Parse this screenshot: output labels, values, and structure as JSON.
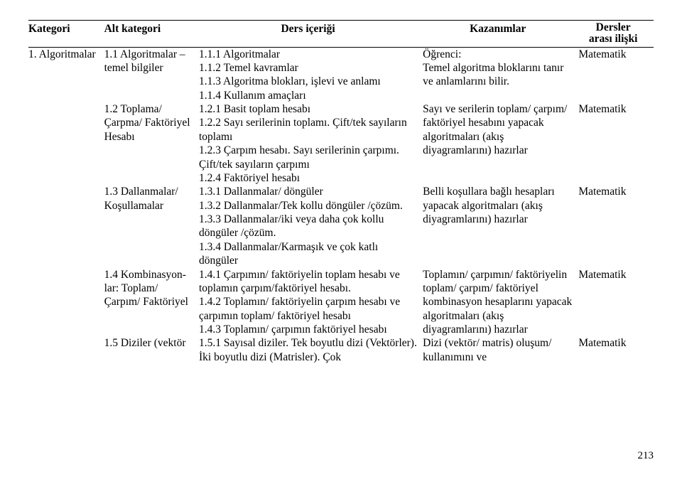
{
  "headers": {
    "kategori": "Kategori",
    "alt": "Alt kategori",
    "ders": "Ders içeriği",
    "kazanim": "Kazanımlar",
    "dersler_line1": "Dersler",
    "dersler_line2": "arası ilişki"
  },
  "rows": [
    {
      "kategori": "1. Algoritmalar",
      "alt": "1.1 Algoritmalar – temel bilgiler",
      "ders": "1.1.1 Algoritmalar\n1.1.2 Temel kavramlar\n1.1.3 Algoritma blokları, işlevi ve anlamı\n1.1.4 Kullanım amaçları",
      "kazanim": "Öğrenci:\nTemel algoritma bloklarını tanır ve anlamlarını bilir.",
      "dersler": "Matematik"
    },
    {
      "kategori": "",
      "alt": "1.2 Toplama/ Çarpma/ Faktöriyel Hesabı",
      "ders": "1.2.1 Basit toplam hesabı\n1.2.2 Sayı serilerinin toplamı. Çift/tek sayıların toplamı\n1.2.3 Çarpım hesabı. Sayı serilerinin çarpımı. Çift/tek sayıların çarpımı\n1.2.4 Faktöriyel hesabı",
      "kazanim": "Sayı ve serilerin toplam/ çarpım/ faktöriyel hesabını yapacak algoritmaları (akış diyagramlarını) hazırlar",
      "dersler": "Matematik"
    },
    {
      "kategori": "",
      "alt": "1.3 Dallanmalar/ Koşullamalar",
      "ders": "1.3.1 Dallanmalar/ döngüler\n1.3.2 Dallanmalar/Tek kollu döngüler /çözüm.\n1.3.3 Dallanmalar/iki veya daha çok kollu döngüler /çözüm.\n1.3.4 Dallanmalar/Karmaşık ve çok katlı döngüler",
      "kazanim": "Belli koşullara bağlı hesapları yapacak algoritmaları (akış diyagramlarını) hazırlar",
      "dersler": "Matematik"
    },
    {
      "kategori": "",
      "alt": "1.4 Kombinasyon-lar: Toplam/ Çarpım/ Faktöriyel",
      "ders": "1.4.1 Çarpımın/ faktöriyelin toplam hesabı ve toplamın çarpım/faktöriyel hesabı.\n1.4.2 Toplamın/ faktöriyelin çarpım hesabı ve çarpımın toplam/ faktöriyel hesabı\n1.4.3 Toplamın/ çarpımın faktöriyel hesabı",
      "kazanim": "Toplamın/ çarpımın/ faktöriyelin toplam/ çarpım/ faktöriyel kombinasyon hesaplarını yapacak algoritmaları (akış diyagramlarını) hazırlar",
      "dersler": "Matematik"
    },
    {
      "kategori": "",
      "alt": "1.5 Diziler (vektör",
      "ders": "1.5.1 Sayısal diziler. Tek boyutlu dizi (Vektörler). İki boyutlu dizi (Matrisler). Çok",
      "kazanim": "Dizi (vektör/ matris) oluşum/ kullanımını ve",
      "dersler": "Matematik"
    }
  ],
  "page_number": "213"
}
